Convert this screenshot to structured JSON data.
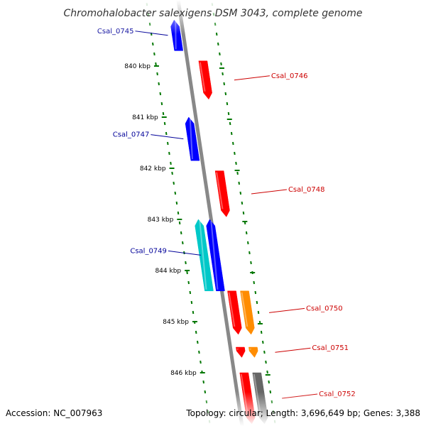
{
  "title": "Chromohalobacter salexigens DSM 3043, complete genome",
  "footer": {
    "accession": "Accession: NC_007963",
    "summary": "Topology: circular; Length: 3,696,649 bp; Genes: 3,388"
  },
  "colors": {
    "forward": "#ff0000",
    "reverse": "#0000ff",
    "reverse_alt": "#00c8c8",
    "forward_alt": "#ff8c00",
    "other": "#666666",
    "backbone": "#888888",
    "ruler": "#007700",
    "label_forward": "#cc0000",
    "label_reverse": "#000099"
  },
  "ticks": [
    {
      "kbp": 840,
      "label": "840 kbp"
    },
    {
      "kbp": 841,
      "label": "841 kbp"
    },
    {
      "kbp": 842,
      "label": "842 kbp"
    },
    {
      "kbp": 843,
      "label": "843 kbp"
    },
    {
      "kbp": 844,
      "label": "844 kbp"
    },
    {
      "kbp": 845,
      "label": "845 kbp"
    },
    {
      "kbp": 846,
      "label": "846 kbp"
    }
  ],
  "genes": [
    {
      "id": "Csal_0745",
      "label": "Csal_0745",
      "strand": "-",
      "start_kbp": 839.1,
      "end_kbp": 839.7,
      "color": "reverse",
      "labeled": true
    },
    {
      "id": "Csal_0746",
      "label": "Csal_0746",
      "strand": "+",
      "start_kbp": 839.9,
      "end_kbp": 840.65,
      "color": "forward",
      "labeled": true
    },
    {
      "id": "Csal_0747",
      "label": "Csal_0747",
      "strand": "-",
      "start_kbp": 841.0,
      "end_kbp": 841.85,
      "color": "reverse",
      "labeled": true
    },
    {
      "id": "Csal_0748",
      "label": "Csal_0748",
      "strand": "+",
      "start_kbp": 842.05,
      "end_kbp": 842.95,
      "color": "forward",
      "labeled": true
    },
    {
      "id": "Csal_0749",
      "label": "Csal_0749",
      "strand": "-",
      "start_kbp": 843.0,
      "end_kbp": 844.4,
      "color": "reverse_alt",
      "labeled": true
    },
    {
      "id": "Csal_0749b",
      "label": "",
      "strand": "-",
      "start_kbp": 843.0,
      "end_kbp": 844.4,
      "color": "reverse",
      "labeled": false
    },
    {
      "id": "Csal_0750",
      "label": "Csal_0750",
      "strand": "+",
      "start_kbp": 844.4,
      "end_kbp": 845.25,
      "color": "forward",
      "labeled": false
    },
    {
      "id": "Csal_0750b",
      "label": "Csal_0750",
      "strand": "+",
      "start_kbp": 844.4,
      "end_kbp": 845.25,
      "color": "forward_alt",
      "labeled": true
    },
    {
      "id": "Csal_0751",
      "label": "",
      "strand": "+",
      "start_kbp": 845.5,
      "end_kbp": 845.7,
      "color": "forward",
      "labeled": false
    },
    {
      "id": "Csal_0751b",
      "label": "Csal_0751",
      "strand": "+",
      "start_kbp": 845.5,
      "end_kbp": 845.7,
      "color": "forward_alt",
      "labeled": true
    },
    {
      "id": "Csal_0752",
      "label": "",
      "strand": "+",
      "start_kbp": 846.0,
      "end_kbp": 847.0,
      "color": "forward",
      "labeled": false
    },
    {
      "id": "Csal_0752b",
      "label": "Csal_0752",
      "strand": "+",
      "start_kbp": 846.0,
      "end_kbp": 847.0,
      "color": "other",
      "labeled": true
    }
  ]
}
